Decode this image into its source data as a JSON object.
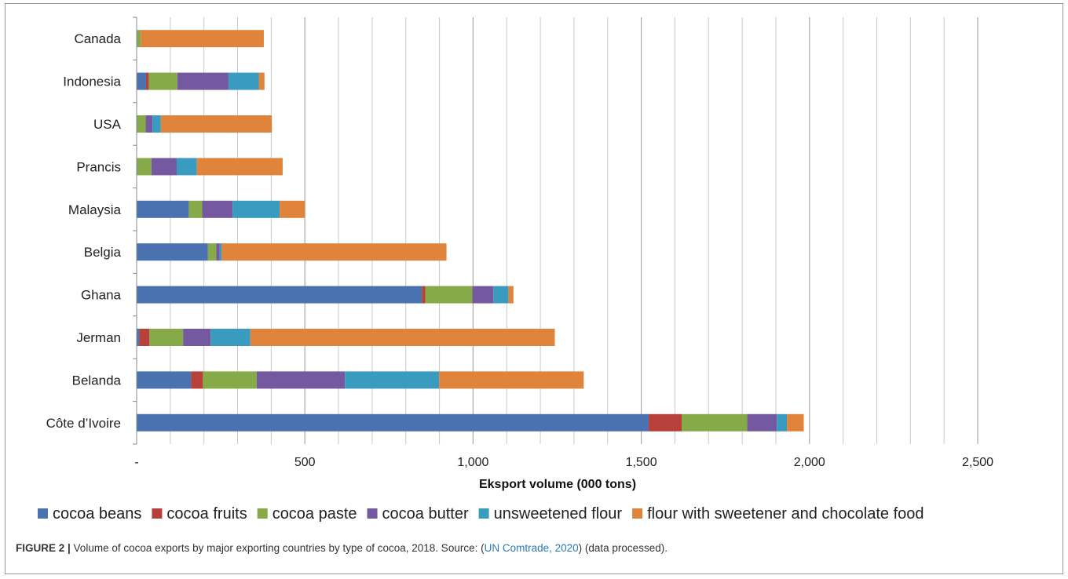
{
  "figure": {
    "label": "FIGURE 2 |",
    "caption_text": " Volume of cocoa exports by major exporting countries by type of cocoa, 2018. Source: (",
    "source_link": "UN Comtrade, 2020",
    "caption_tail": ") (data processed)."
  },
  "colors": {
    "cocoa_beans": "#4a72b0",
    "cocoa_fruits": "#b8403a",
    "cocoa_paste": "#86aa48",
    "cocoa_butter": "#7559a0",
    "unsweetened_flour": "#3a9bc0",
    "flour_sweetener": "#e0843b",
    "gridline": "#c9c9c9"
  },
  "chart_data": {
    "type": "bar",
    "orientation": "horizontal",
    "stacked": true,
    "categories": [
      "Canada",
      "Indonesia",
      "USA",
      "Prancis",
      "Malaysia",
      "Belgia",
      "Ghana",
      "Jerman",
      "Belanda",
      "Côte d’Ivoire"
    ],
    "series": [
      {
        "name": "cocoa beans",
        "color": "#4a72b0",
        "values": [
          2,
          28,
          2,
          2,
          155,
          212,
          848,
          8,
          162,
          1522
        ]
      },
      {
        "name": "cocoa fruits",
        "color": "#b8403a",
        "values": [
          0,
          8,
          0,
          0,
          0,
          0,
          10,
          30,
          35,
          98
        ]
      },
      {
        "name": "cocoa paste",
        "color": "#86aa48",
        "values": [
          10,
          85,
          25,
          42,
          40,
          25,
          140,
          100,
          160,
          195
        ]
      },
      {
        "name": "cocoa butter",
        "color": "#7559a0",
        "values": [
          0,
          152,
          20,
          75,
          90,
          10,
          62,
          82,
          262,
          88
        ]
      },
      {
        "name": "unsweetened flour",
        "color": "#3a9bc0",
        "values": [
          0,
          90,
          25,
          60,
          140,
          6,
          45,
          118,
          280,
          30
        ]
      },
      {
        "name": "flour with sweetener and chocolate food",
        "color": "#e0843b",
        "values": [
          366,
          17,
          330,
          255,
          75,
          668,
          15,
          905,
          430,
          50
        ]
      }
    ],
    "xlabel": "Eksport volume (000 tons)",
    "xlim": [
      0,
      2500
    ],
    "xticks": [
      0,
      500,
      1000,
      1500,
      2000,
      2500
    ],
    "xtick_labels": [
      "-",
      "500",
      "1,000",
      "1,500",
      "2,000",
      "2,500"
    ],
    "grid": true,
    "legend_position": "bottom"
  }
}
